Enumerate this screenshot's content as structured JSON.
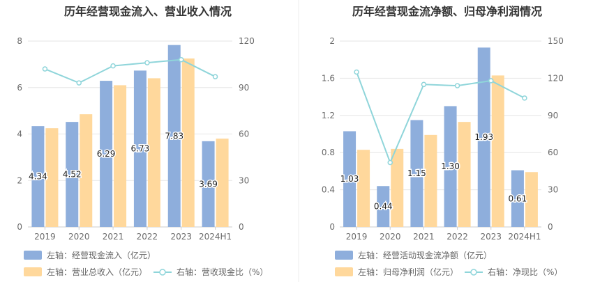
{
  "panels": [
    {
      "title": "历年经营现金流入、营业收入情况",
      "legend": [
        "左轴：经营现金流入（亿元）",
        "左轴：营业总收入（亿元）",
        "右轴：营收现金比（%）"
      ]
    },
    {
      "title": "历年经营现金流净额、归母净利润情况",
      "legend": [
        "左轴：经营活动现金流净额（亿元）",
        "左轴：归母净利润（亿元）",
        "右轴：净现比（%）"
      ]
    }
  ],
  "chart_data": [
    {
      "type": "bar",
      "title": "历年经营现金流入、营业收入情况",
      "categories": [
        "2019",
        "2020",
        "2021",
        "2022",
        "2023",
        "2024H1"
      ],
      "left_axis": {
        "ylim": [
          0,
          8
        ],
        "ticks": [
          "0",
          "2",
          "4",
          "6",
          "8"
        ]
      },
      "right_axis": {
        "ylim": [
          0,
          120
        ],
        "ticks": [
          "0",
          "30",
          "60",
          "90",
          "120"
        ]
      },
      "series": [
        {
          "name": "左轴：经营现金流入（亿元）",
          "axis": "left",
          "kind": "bar",
          "color": "#8eaedc",
          "values": [
            4.34,
            4.52,
            6.29,
            6.73,
            7.83,
            3.69
          ],
          "labels": [
            "4.34",
            "4.52",
            "6.29",
            "6.73",
            "7.83",
            "3.69"
          ]
        },
        {
          "name": "左轴：营业总收入（亿元）",
          "axis": "left",
          "kind": "bar",
          "color": "#ffd89c",
          "values": [
            4.25,
            4.85,
            6.1,
            6.4,
            7.25,
            3.8
          ]
        },
        {
          "name": "右轴：营收现金比（%）",
          "axis": "right",
          "kind": "line",
          "color": "#8fd5da",
          "values": [
            102,
            93,
            104,
            106,
            108,
            97
          ]
        }
      ],
      "grid": true,
      "legend_position": "bottom-left"
    },
    {
      "type": "bar",
      "title": "历年经营现金流净额、归母净利润情况",
      "categories": [
        "2019",
        "2020",
        "2021",
        "2022",
        "2023",
        "2024H1"
      ],
      "left_axis": {
        "ylim": [
          0,
          2
        ],
        "ticks": [
          "0",
          "0.4",
          "0.8",
          "1.2",
          "1.6",
          "2"
        ]
      },
      "right_axis": {
        "ylim": [
          0,
          150
        ],
        "ticks": [
          "0",
          "30",
          "60",
          "90",
          "120",
          "150"
        ]
      },
      "series": [
        {
          "name": "左轴：经营活动现金流净额（亿元）",
          "axis": "left",
          "kind": "bar",
          "color": "#8eaedc",
          "values": [
            1.03,
            0.44,
            1.15,
            1.3,
            1.93,
            0.61
          ],
          "labels": [
            "1.03",
            "0.44",
            "1.15",
            "1.30",
            "1.93",
            "0.61"
          ]
        },
        {
          "name": "左轴：归母净利润（亿元）",
          "axis": "left",
          "kind": "bar",
          "color": "#ffd89c",
          "values": [
            0.83,
            0.84,
            0.99,
            1.13,
            1.63,
            0.59
          ]
        },
        {
          "name": "右轴：净现比（%）",
          "axis": "right",
          "kind": "line",
          "color": "#8fd5da",
          "values": [
            125,
            52,
            115,
            114,
            118,
            104
          ]
        }
      ],
      "grid": true,
      "legend_position": "bottom-left"
    }
  ]
}
